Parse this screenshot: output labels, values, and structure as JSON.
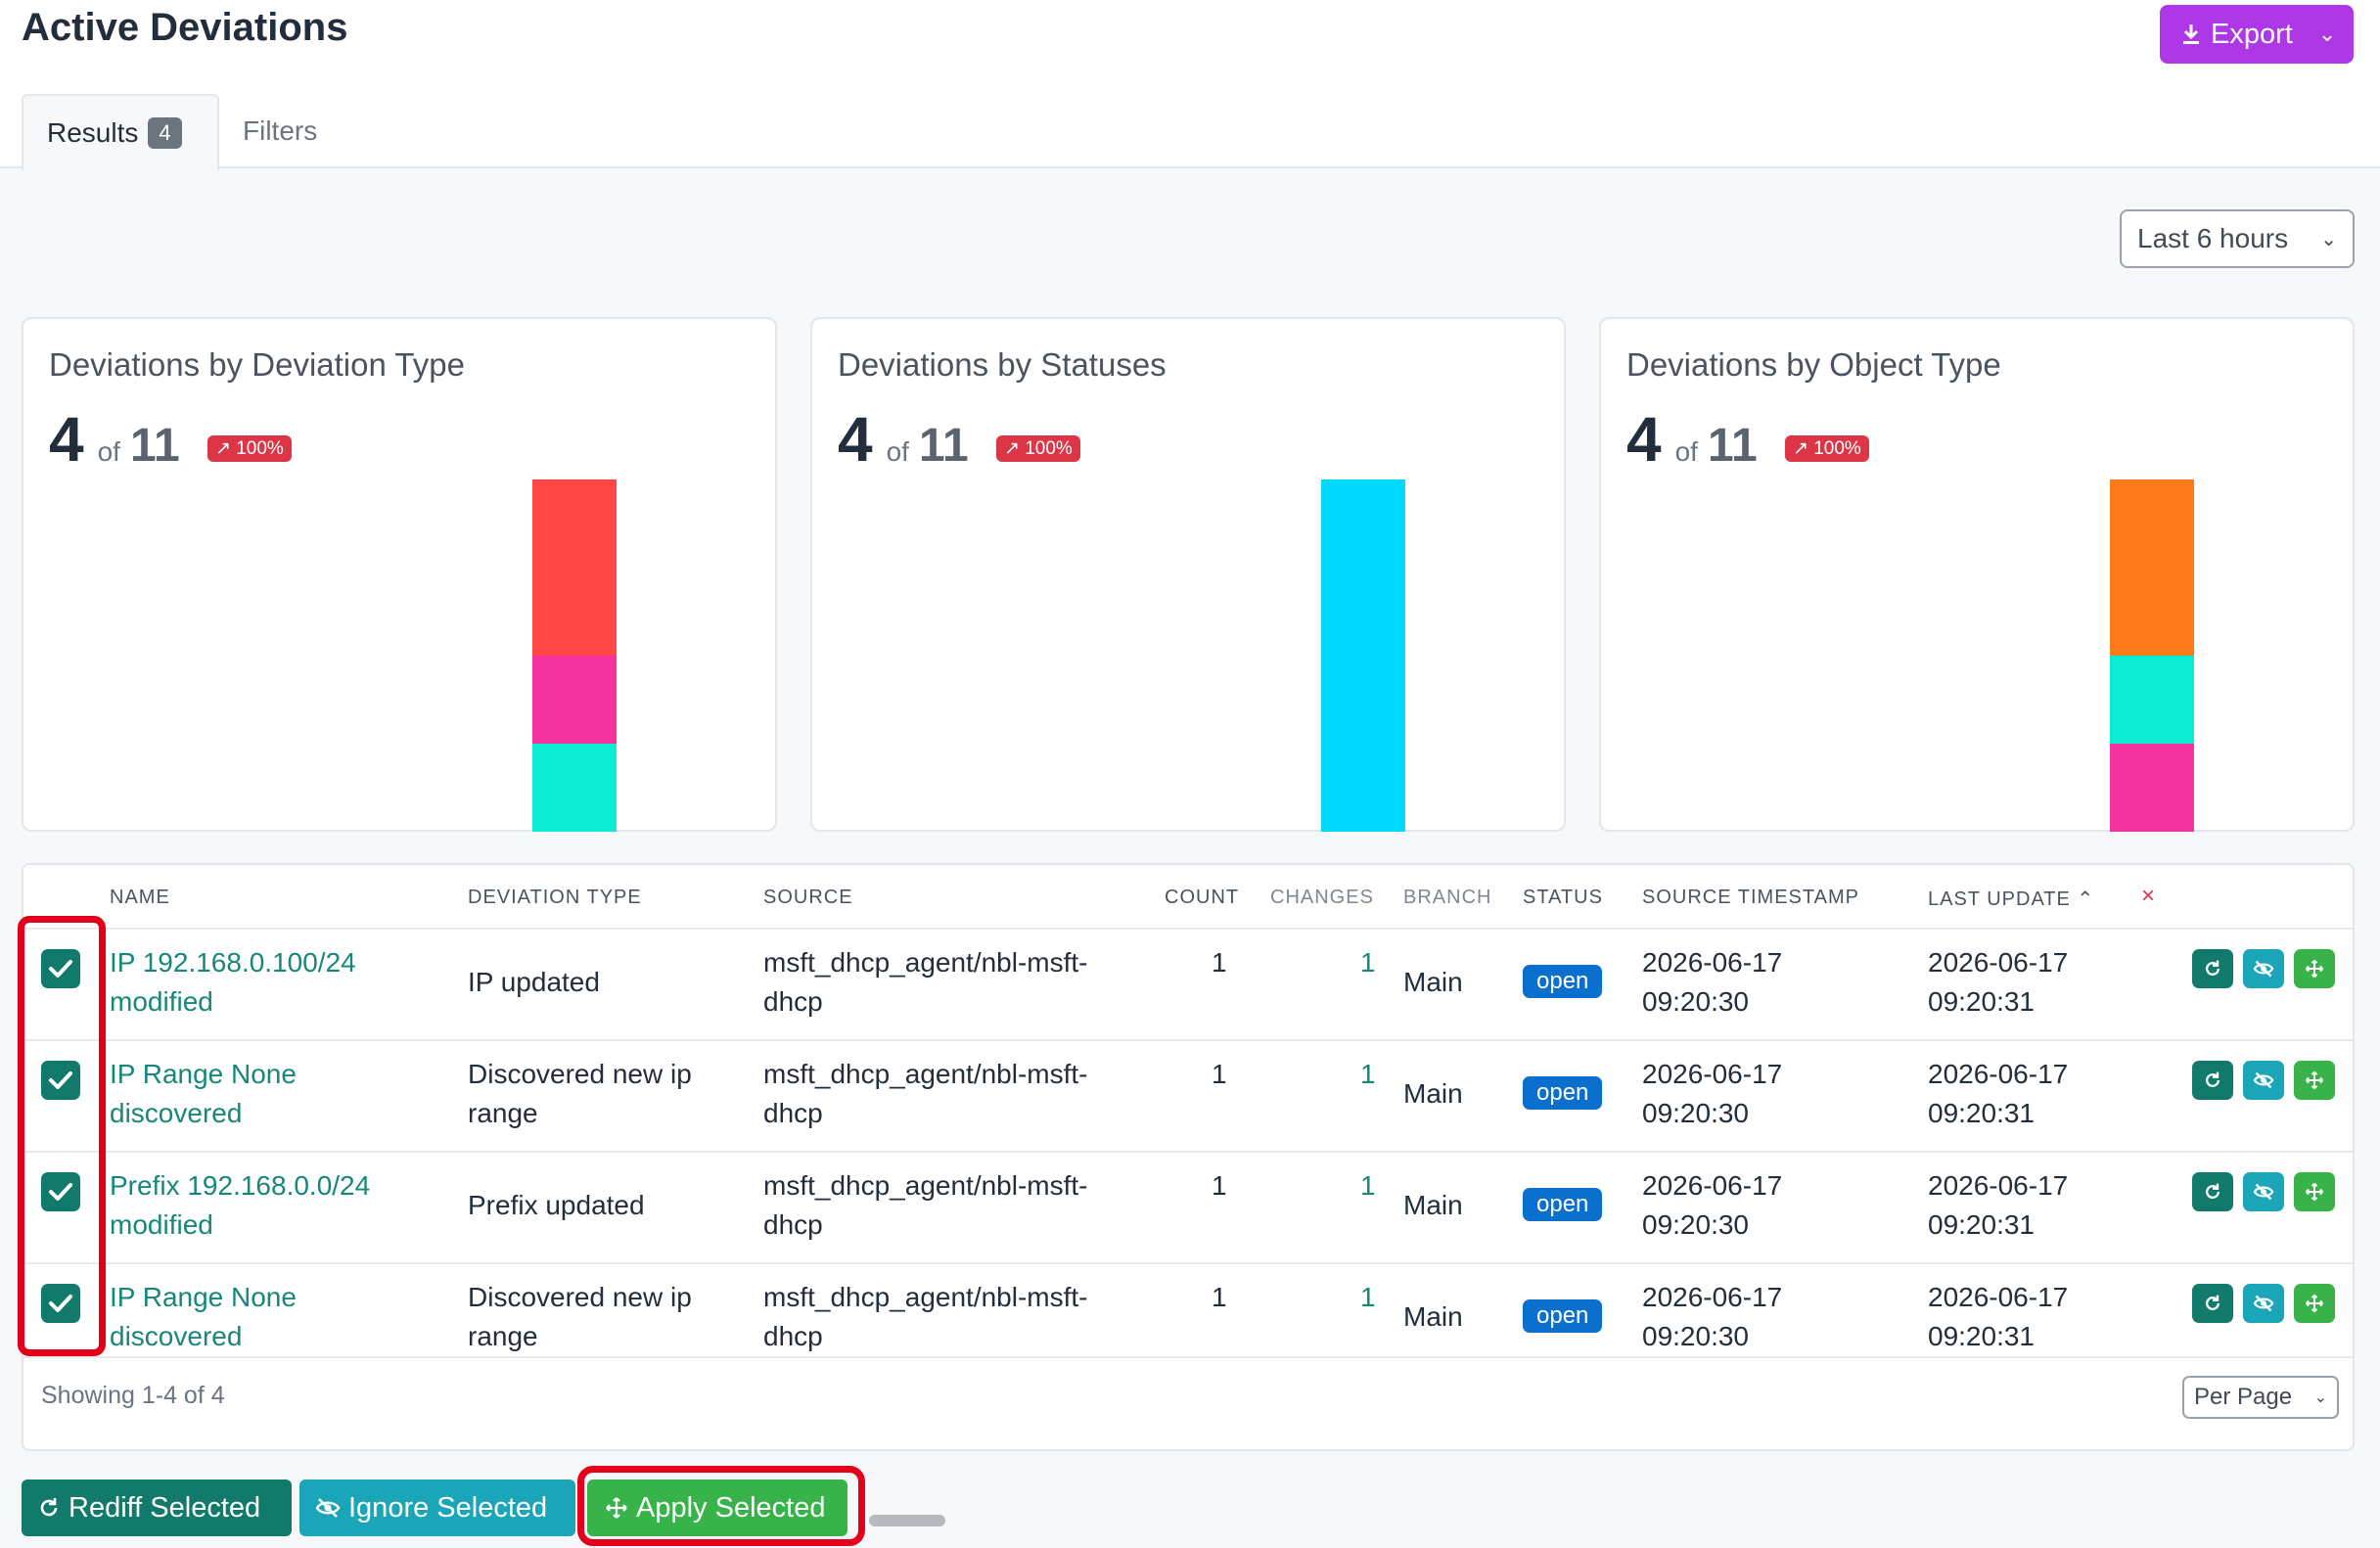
{
  "page": {
    "title": "Active Deviations"
  },
  "toolbar": {
    "export_label": "Export",
    "export_icon": "download-icon"
  },
  "tabs": [
    {
      "label": "Results",
      "count": "4"
    },
    {
      "label": "Filters"
    }
  ],
  "time_range": {
    "selected": "Last 6 hours"
  },
  "cards": [
    {
      "title": "Deviations by Deviation Type",
      "value": "4",
      "of": "of",
      "total": "11",
      "badge": "↗ 100%"
    },
    {
      "title": "Deviations by Statuses",
      "value": "4",
      "of": "of",
      "total": "11",
      "badge": "↗ 100%"
    },
    {
      "title": "Deviations by Object Type",
      "value": "4",
      "of": "of",
      "total": "11",
      "badge": "↗ 100%"
    }
  ],
  "chart_data": [
    {
      "type": "bar",
      "stacked": true,
      "title": "Deviations by Deviation Type",
      "series": [
        {
          "values": [
            2
          ],
          "color": "#ff4747"
        },
        {
          "values": [
            1
          ],
          "color": "#f5339f"
        },
        {
          "values": [
            1
          ],
          "color": "#0aebd2"
        }
      ]
    },
    {
      "type": "bar",
      "stacked": true,
      "title": "Deviations by Statuses",
      "series": [
        {
          "values": [
            4
          ],
          "color": "#00d9ff"
        }
      ]
    },
    {
      "type": "bar",
      "stacked": true,
      "title": "Deviations by Object Type",
      "series": [
        {
          "values": [
            2
          ],
          "color": "#ff7a1a"
        },
        {
          "values": [
            1
          ],
          "color": "#0aebd2"
        },
        {
          "values": [
            1
          ],
          "color": "#f5339f"
        }
      ]
    }
  ],
  "table": {
    "headers": {
      "name": "NAME",
      "deviation_type": "DEVIATION TYPE",
      "source": "SOURCE",
      "count": "COUNT",
      "changes": "CHANGES",
      "branch": "BRANCH",
      "status": "STATUS",
      "source_timestamp": "SOURCE TIMESTAMP",
      "last_update": "LAST UPDATE ⌃",
      "clear": "×"
    },
    "rows": [
      {
        "name1": "IP 192.168.0.100/24",
        "name2": "modified",
        "type1": "IP updated",
        "type2": "",
        "source1": "msft_dhcp_agent/nbl-msft-",
        "source2": "dhcp",
        "count": "1",
        "changes": "1",
        "branch": "Main",
        "status": "open",
        "ts1": "2026-06-17",
        "ts2": "09:20:30",
        "lu1": "2026-06-17",
        "lu2": "09:20:31"
      },
      {
        "name1": "IP Range None",
        "name2": "discovered",
        "type1": "Discovered new ip",
        "type2": "range",
        "source1": "msft_dhcp_agent/nbl-msft-",
        "source2": "dhcp",
        "count": "1",
        "changes": "1",
        "branch": "Main",
        "status": "open",
        "ts1": "2026-06-17",
        "ts2": "09:20:30",
        "lu1": "2026-06-17",
        "lu2": "09:20:31"
      },
      {
        "name1": "Prefix 192.168.0.0/24",
        "name2": "modified",
        "type1": "Prefix updated",
        "type2": "",
        "source1": "msft_dhcp_agent/nbl-msft-",
        "source2": "dhcp",
        "count": "1",
        "changes": "1",
        "branch": "Main",
        "status": "open",
        "ts1": "2026-06-17",
        "ts2": "09:20:30",
        "lu1": "2026-06-17",
        "lu2": "09:20:31"
      },
      {
        "name1": "IP Range None",
        "name2": "discovered",
        "type1": "Discovered new ip",
        "type2": "range",
        "source1": "msft_dhcp_agent/nbl-msft-",
        "source2": "dhcp",
        "count": "1",
        "changes": "1",
        "branch": "Main",
        "status": "open",
        "ts1": "2026-06-17",
        "ts2": "09:20:30",
        "lu1": "2026-06-17",
        "lu2": "09:20:31"
      }
    ],
    "footer": {
      "showing": "Showing 1-4 of 4",
      "per_page": "Per Page"
    }
  },
  "bulk_actions": {
    "rediff": "Rediff Selected",
    "ignore": "Ignore Selected",
    "apply": "Apply Selected"
  },
  "icons": {
    "rediff": "refresh-icon",
    "ignore": "eye-slash-icon",
    "apply": "move-arrows-icon",
    "checkbox": "check-icon"
  },
  "colors": {
    "accent": "#ae38e7",
    "teal": "#127a6a",
    "cyan": "#1aa6b8",
    "green": "#37b34a",
    "link": "#17877b",
    "status_open": "#0b6fce",
    "danger": "#dc3545",
    "highlight": "#e2001a"
  }
}
